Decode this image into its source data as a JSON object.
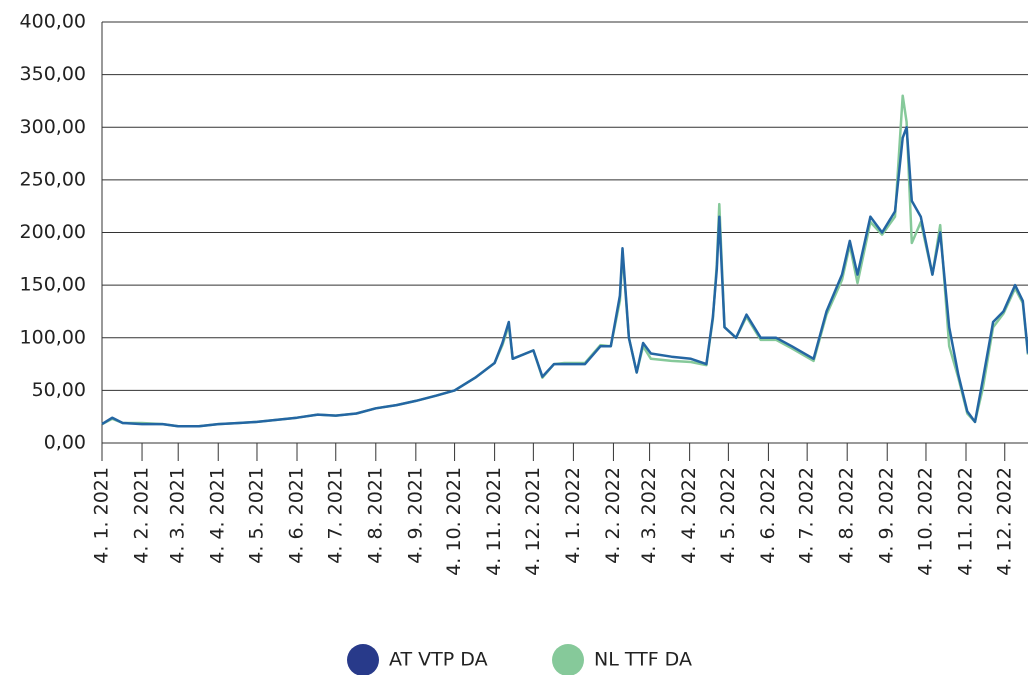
{
  "chart_data": {
    "type": "line",
    "x": [
      "2021-01-04",
      "2021-01-12",
      "2021-01-20",
      "2021-02-04",
      "2021-02-20",
      "2021-03-04",
      "2021-03-20",
      "2021-04-04",
      "2021-04-20",
      "2021-05-04",
      "2021-05-20",
      "2021-06-04",
      "2021-06-20",
      "2021-07-04",
      "2021-07-20",
      "2021-08-04",
      "2021-08-20",
      "2021-09-04",
      "2021-09-20",
      "2021-10-04",
      "2021-10-20",
      "2021-11-04",
      "2021-11-10",
      "2021-11-15",
      "2021-11-18",
      "2021-12-04",
      "2021-12-11",
      "2021-12-20",
      "2021-12-28",
      "2022-01-13",
      "2022-01-25",
      "2022-02-02",
      "2022-02-09",
      "2022-02-11",
      "2022-02-16",
      "2022-02-22",
      "2022-02-27",
      "2022-03-05",
      "2022-03-21",
      "2022-04-05",
      "2022-04-17",
      "2022-04-22",
      "2022-04-25",
      "2022-04-27",
      "2022-05-01",
      "2022-05-10",
      "2022-05-18",
      "2022-05-29",
      "2022-06-10",
      "2022-06-22",
      "2022-07-09",
      "2022-07-19",
      "2022-07-31",
      "2022-08-06",
      "2022-08-12",
      "2022-08-22",
      "2022-08-31",
      "2022-09-10",
      "2022-09-16",
      "2022-09-19",
      "2022-09-23",
      "2022-09-30",
      "2022-10-09",
      "2022-10-15",
      "2022-10-22",
      "2022-10-29",
      "2022-11-05",
      "2022-11-11",
      "2022-11-17",
      "2022-11-25",
      "2022-12-03",
      "2022-12-12",
      "2022-12-18",
      "2022-12-22"
    ],
    "series": [
      {
        "name": "NL TTF DA",
        "color": "#86c99a",
        "values": [
          18,
          23,
          19,
          19,
          18,
          16,
          16,
          18,
          19,
          20,
          22,
          24,
          27,
          26,
          28,
          33,
          36,
          40,
          45,
          50,
          62,
          76,
          93,
          112,
          80,
          88,
          62,
          75,
          76,
          76,
          93,
          92,
          135,
          180,
          100,
          67,
          92,
          80,
          78,
          77,
          74,
          118,
          170,
          227,
          110,
          100,
          120,
          98,
          98,
          90,
          78,
          122,
          155,
          188,
          152,
          210,
          198,
          215,
          330,
          305,
          190,
          210,
          160,
          207,
          92,
          62,
          28,
          20,
          52,
          110,
          123,
          147,
          133,
          84
        ]
      },
      {
        "name": "AT VTP DA",
        "color": "#2466a3",
        "values": [
          18,
          24,
          19,
          18,
          18,
          16,
          16,
          18,
          19,
          20,
          22,
          24,
          27,
          26,
          28,
          33,
          36,
          40,
          45,
          50,
          62,
          76,
          95,
          115,
          80,
          88,
          63,
          75,
          75,
          75,
          92,
          92,
          140,
          185,
          100,
          67,
          95,
          85,
          82,
          80,
          75,
          120,
          165,
          215,
          110,
          100,
          122,
          100,
          100,
          92,
          80,
          125,
          160,
          192,
          160,
          215,
          200,
          220,
          290,
          300,
          230,
          215,
          160,
          200,
          110,
          65,
          30,
          20,
          60,
          115,
          125,
          150,
          135,
          85
        ]
      }
    ],
    "xlim": [
      "2021-01-04",
      "2022-12-22"
    ],
    "xticks": [
      {
        "value": "2021-01-04",
        "label": "4. 1. 2021"
      },
      {
        "value": "2021-02-04",
        "label": "4. 2. 2021"
      },
      {
        "value": "2021-03-04",
        "label": "4. 3. 2021"
      },
      {
        "value": "2021-04-04",
        "label": "4. 4. 2021"
      },
      {
        "value": "2021-05-04",
        "label": "4. 5. 2021"
      },
      {
        "value": "2021-06-04",
        "label": "4. 6. 2021"
      },
      {
        "value": "2021-07-04",
        "label": "4. 7. 2021"
      },
      {
        "value": "2021-08-04",
        "label": "4. 8. 2021"
      },
      {
        "value": "2021-09-04",
        "label": "4. 9. 2021"
      },
      {
        "value": "2021-10-04",
        "label": "4. 10. 2021"
      },
      {
        "value": "2021-11-04",
        "label": "4. 11. 2021"
      },
      {
        "value": "2021-12-04",
        "label": "4. 12. 2021"
      },
      {
        "value": "2022-01-04",
        "label": "4. 1. 2022"
      },
      {
        "value": "2022-02-04",
        "label": "4. 2. 2022"
      },
      {
        "value": "2022-03-04",
        "label": "4. 3. 2022"
      },
      {
        "value": "2022-04-04",
        "label": "4. 4. 2022"
      },
      {
        "value": "2022-05-04",
        "label": "4. 5. 2022"
      },
      {
        "value": "2022-06-04",
        "label": "4. 6. 2022"
      },
      {
        "value": "2022-07-04",
        "label": "4. 7. 2022"
      },
      {
        "value": "2022-08-04",
        "label": "4. 8. 2022"
      },
      {
        "value": "2022-09-04",
        "label": "4. 9. 2022"
      },
      {
        "value": "2022-10-04",
        "label": "4. 10. 2022"
      },
      {
        "value": "2022-11-04",
        "label": "4. 11. 2022"
      },
      {
        "value": "2022-12-04",
        "label": "4. 12. 2022"
      }
    ],
    "ylim": [
      0,
      400
    ],
    "yticks": [
      {
        "value": 0,
        "label": "0,00"
      },
      {
        "value": 50,
        "label": "50,00"
      },
      {
        "value": 100,
        "label": "100,00"
      },
      {
        "value": 150,
        "label": "150,00"
      },
      {
        "value": 200,
        "label": "200,00"
      },
      {
        "value": 250,
        "label": "250,00"
      },
      {
        "value": 300,
        "label": "300,00"
      },
      {
        "value": 350,
        "label": "350,00"
      },
      {
        "value": 400,
        "label": "400,00"
      }
    ],
    "grid": true,
    "legend": "bottom",
    "legend_colors": [
      "#283a8a",
      "#86c99a"
    ]
  }
}
